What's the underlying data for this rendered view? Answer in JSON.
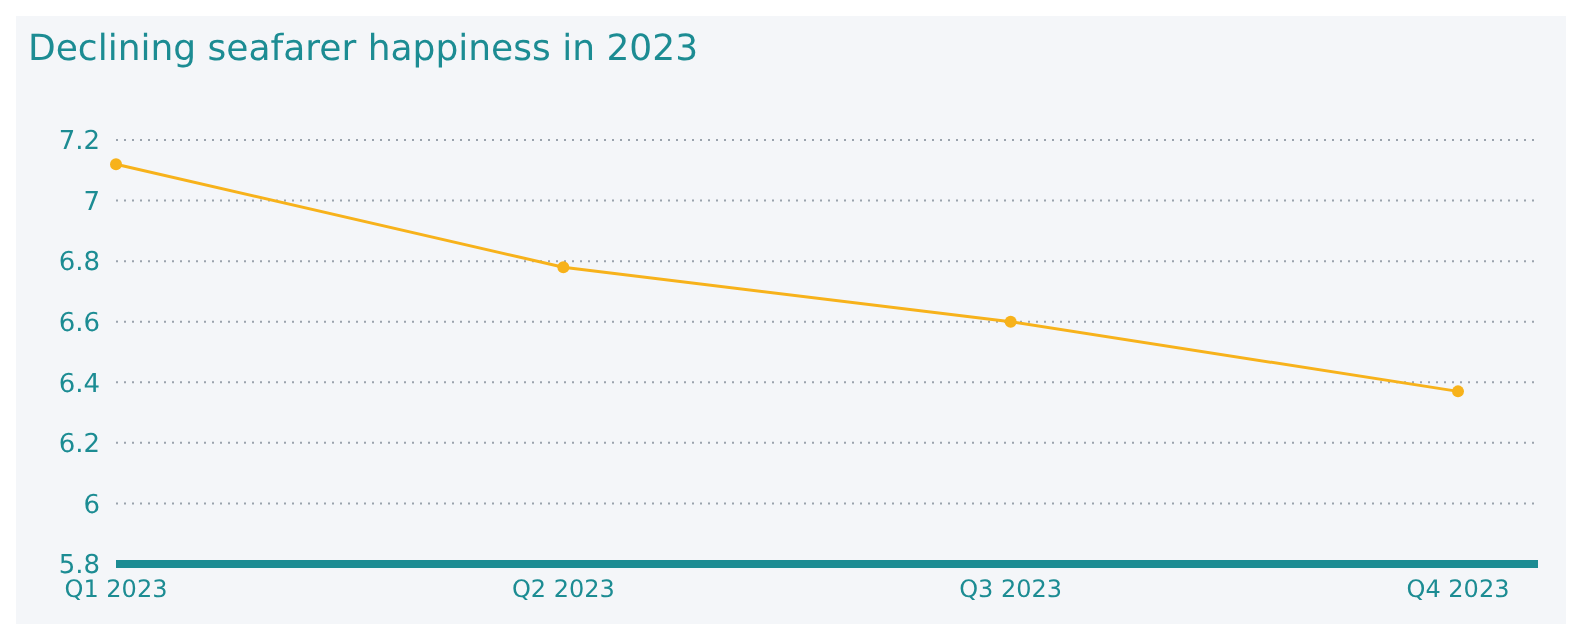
{
  "chart_data": {
    "type": "line",
    "title": "Declining seafarer happiness in 2023",
    "categories": [
      "Q1 2023",
      "Q2 2023",
      "Q3 2023",
      "Q4 2023"
    ],
    "series": [
      {
        "color": "#f7b21b",
        "values": [
          7.12,
          6.78,
          6.6,
          6.37
        ]
      }
    ],
    "ylim": [
      5.8,
      7.2
    ],
    "yticks": [
      5.8,
      6,
      6.2,
      6.4,
      6.6,
      6.8,
      7,
      7.2
    ],
    "grid": "y",
    "marker": "circle",
    "legend": false
  }
}
